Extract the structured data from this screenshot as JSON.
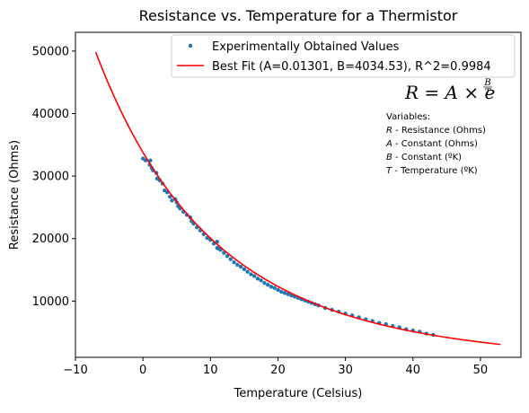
{
  "chart_data": {
    "type": "scatter",
    "title": "Resistance vs. Temperature for a Thermistor",
    "xlabel": "Temperature (Celsius)",
    "ylabel": "Resistance (Ohms)",
    "xlim": [
      -10,
      56
    ],
    "ylim": [
      1000,
      53000
    ],
    "x_ticks": [
      -10,
      0,
      10,
      20,
      30,
      40,
      50
    ],
    "x_tick_labels": [
      "−10",
      "0",
      "10",
      "20",
      "30",
      "40",
      "50"
    ],
    "y_ticks": [
      10000,
      20000,
      30000,
      40000,
      50000
    ],
    "y_tick_labels": [
      "10000",
      "20000",
      "30000",
      "40000",
      "50000"
    ],
    "grid": false,
    "legend_position": "top-right",
    "colors": {
      "scatter": "#1f77b4",
      "fit": "#ff0000"
    },
    "series": [
      {
        "name": "Experimentally Obtained Values",
        "kind": "scatter",
        "x": [
          0.0,
          0.4,
          1.0,
          1.1,
          1.3,
          1.5,
          2.0,
          2.1,
          2.5,
          2.9,
          3.2,
          3.6,
          4.0,
          4.3,
          4.8,
          5.0,
          5.2,
          5.5,
          6.0,
          6.5,
          7.0,
          7.2,
          7.5,
          8.0,
          8.5,
          9.0,
          9.5,
          10.0,
          10.5,
          11.0,
          11.0,
          11.2,
          11.5,
          12.0,
          12.5,
          13.0,
          13.5,
          14.0,
          14.5,
          15.0,
          15.5,
          16.0,
          16.5,
          17.0,
          17.5,
          18.0,
          18.5,
          19.0,
          19.5,
          20.0,
          20.5,
          21.0,
          21.5,
          22.0,
          22.5,
          23.0,
          23.5,
          24.0,
          24.5,
          25.0,
          25.5,
          26.0,
          27.0,
          28.0,
          29.0,
          30.0,
          31.0,
          32.0,
          33.0,
          34.0,
          35.0,
          36.0,
          37.0,
          38.0,
          39.0,
          40.0,
          41.0,
          42.0,
          43.0
        ],
        "y": [
          32800,
          32500,
          31800,
          32500,
          31300,
          30900,
          30500,
          29600,
          29300,
          28800,
          27700,
          27400,
          26700,
          26100,
          26300,
          25800,
          25200,
          24800,
          24300,
          23800,
          23400,
          22800,
          22400,
          21800,
          21300,
          20700,
          20100,
          19800,
          19200,
          19500,
          18500,
          18400,
          18200,
          17700,
          17200,
          16700,
          16200,
          15800,
          15500,
          15100,
          14700,
          14300,
          14000,
          13600,
          13300,
          12900,
          12600,
          12300,
          12100,
          11800,
          11500,
          11300,
          11100,
          10900,
          10700,
          10500,
          10300,
          10100,
          9900,
          9700,
          9500,
          9300,
          8900,
          8600,
          8300,
          8000,
          7700,
          7400,
          7100,
          6800,
          6500,
          6300,
          6000,
          5800,
          5500,
          5300,
          5100,
          4800,
          4600
        ]
      },
      {
        "name": "Best Fit (A=0.01301, B=4034.53), R^2=0.9984",
        "kind": "line",
        "model": {
          "A": 0.01301,
          "B": 4034.53,
          "x_offset_kelvin": 273.15
        },
        "x_range": [
          -7,
          53
        ]
      }
    ],
    "annotations": {
      "formula": {
        "lhs": "R = A × e",
        "sup_num": "B",
        "sup_den": "T"
      },
      "variables": [
        {
          "sym": "Variables:",
          "desc": ""
        },
        {
          "sym": "R",
          "desc": " - Resistance (Ohms)"
        },
        {
          "sym": "A",
          "desc": " - Constant (Ohms)"
        },
        {
          "sym": "B",
          "desc": " - Constant (ºK)"
        },
        {
          "sym": "T",
          "desc": " - Temperature (ºK)"
        }
      ]
    }
  }
}
